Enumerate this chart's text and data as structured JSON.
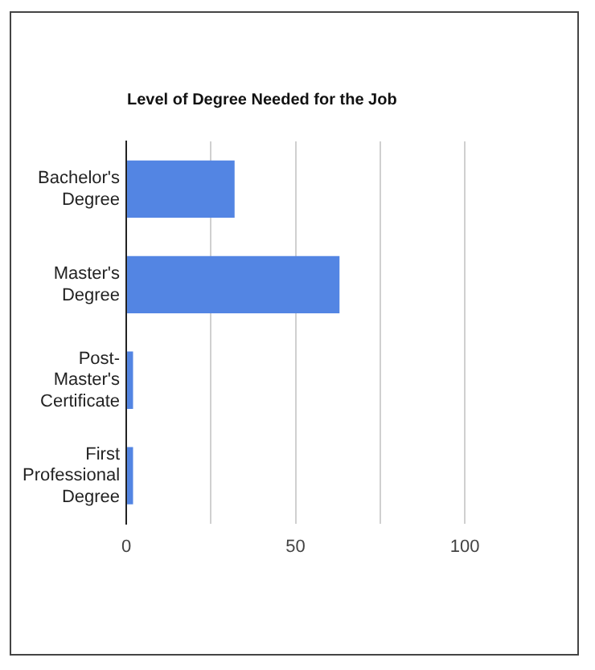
{
  "chart_data": {
    "type": "bar",
    "orientation": "horizontal",
    "title": "Level of Degree Needed for the Job",
    "categories": [
      "Bachelor's Degree",
      "Master's Degree",
      "Post-Master's Certificate",
      "First Professional Degree"
    ],
    "values": [
      32,
      63,
      2,
      2
    ],
    "color": "#5385e3",
    "xlim": [
      0,
      100
    ],
    "xticks": [
      0,
      {
        "value": 25,
        "label": null
      },
      50,
      {
        "value": 75,
        "label": null
      },
      100
    ],
    "grid": "x",
    "legend": false
  }
}
